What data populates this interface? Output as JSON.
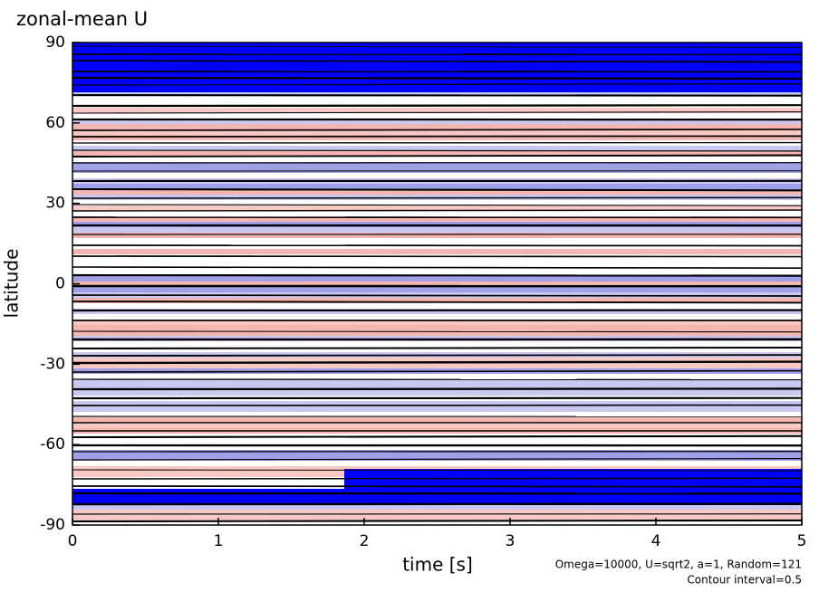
{
  "chart_data": {
    "type": "contour",
    "title": "zonal-mean U",
    "x_label": "time [s]",
    "y_label": "latitude",
    "xlim": [
      0,
      5
    ],
    "xticks": [
      0,
      1,
      2,
      3,
      4,
      5
    ],
    "ylim": [
      -90,
      90
    ],
    "yticks": [
      -90,
      -60,
      -30,
      0,
      30,
      60,
      90
    ],
    "annotations": [
      "Omega=10000, U=sqrt2, a=1, Random=121",
      "Contour interval=0.5"
    ]
  }
}
